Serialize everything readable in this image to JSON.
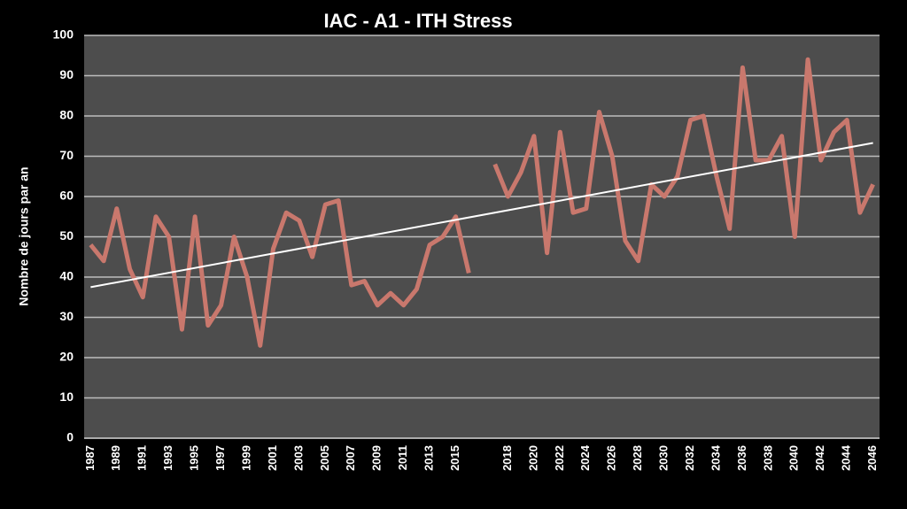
{
  "chart_data": {
    "type": "line",
    "title": "IAC - A1 - ITH Stress",
    "y_label": "Nombre de jours par an",
    "categories": [
      "1987",
      null,
      "1989",
      null,
      "1991",
      null,
      "1993",
      null,
      "1995",
      null,
      "1997",
      null,
      "1999",
      null,
      "2001",
      null,
      "2003",
      null,
      "2005",
      null,
      "2007",
      null,
      "2009",
      null,
      "2011",
      null,
      "2013",
      null,
      "2015",
      null,
      null,
      null,
      "2018",
      null,
      "2020",
      null,
      "2022",
      null,
      "2024",
      null,
      "2026",
      null,
      "2028",
      null,
      "2030",
      null,
      "2032",
      null,
      "2034",
      null,
      "2036",
      null,
      "2038",
      null,
      "2040",
      null,
      "2042",
      null,
      "2044",
      null,
      "2046"
    ],
    "series": [
      {
        "color": "#c9786d",
        "values": [
          48,
          44,
          57,
          42,
          35,
          55,
          50,
          27,
          55,
          28,
          33,
          50,
          40,
          23,
          47,
          56,
          54,
          45,
          58,
          59,
          38,
          39,
          33,
          36,
          33,
          37,
          48,
          50,
          55,
          41,
          null,
          68,
          60,
          66,
          75,
          46,
          76,
          56,
          57,
          81,
          70,
          49,
          44,
          63,
          60,
          65,
          79,
          80,
          65,
          52,
          92,
          69,
          69,
          75,
          50,
          94,
          69,
          76,
          79,
          56,
          63
        ]
      }
    ],
    "trendline": {
      "color": "#ffffff",
      "values": [
        37.5,
        73.3
      ]
    },
    "ylim": [
      0,
      100
    ],
    "yticks": [
      0,
      10,
      20,
      30,
      40,
      50,
      60,
      70,
      80,
      90,
      100
    ],
    "grid": true
  }
}
